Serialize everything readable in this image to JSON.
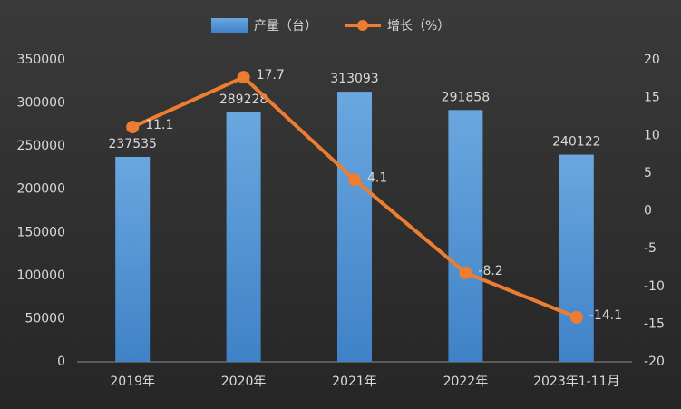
{
  "chart_data": {
    "type": "bar",
    "categories": [
      "2019年",
      "2020年",
      "2021年",
      "2022年",
      "2023年1-11月"
    ],
    "series": [
      {
        "name": "产量（台）",
        "type": "bar",
        "color": "#5b9bd5",
        "values": [
          237535,
          289228,
          313093,
          291858,
          240122
        ]
      },
      {
        "name": "增长（%）",
        "type": "line",
        "axis": "y2",
        "color": "#ed7d31",
        "values": [
          11.1,
          17.7,
          4.1,
          -8.2,
          -14.1
        ]
      }
    ],
    "ylim": [
      0,
      350000
    ],
    "yticks": [
      0,
      50000,
      100000,
      150000,
      200000,
      250000,
      300000,
      350000
    ],
    "y2lim": [
      -20,
      20
    ],
    "y2ticks": [
      -20,
      -15,
      -10,
      -5,
      0,
      5,
      10,
      15,
      20
    ],
    "legend": "top",
    "grid": false
  }
}
